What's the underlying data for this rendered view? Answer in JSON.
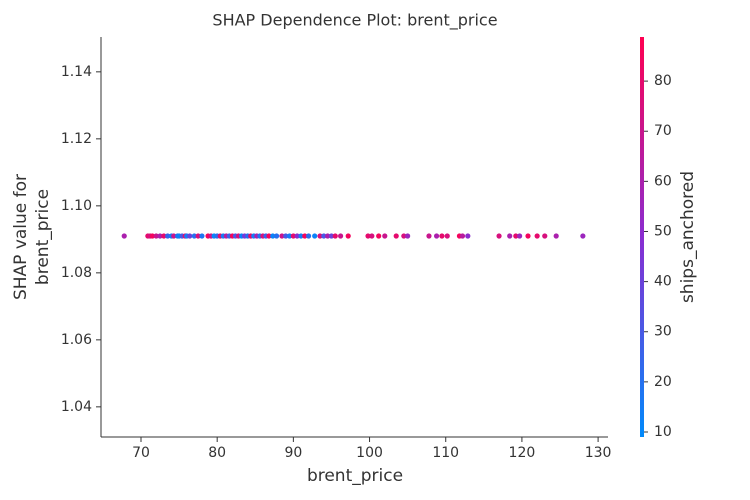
{
  "chart_data": {
    "type": "scatter",
    "title": "SHAP Dependence Plot: brent_price",
    "x_label": "brent_price",
    "y_label": [
      "SHAP value for",
      "brent_price"
    ],
    "color_label": "ships_anchored",
    "xlim": [
      64.75,
      131.3
    ],
    "ylim": [
      1.031,
      1.1504
    ],
    "clim": [
      9,
      88.8
    ],
    "xticks": [
      70,
      80,
      90,
      100,
      110,
      120,
      130
    ],
    "yticks": [
      1.04,
      1.06,
      1.08,
      {
        "value": 1.1,
        "label": "1.10"
      },
      1.12,
      1.14
    ],
    "cticks": [
      10,
      20,
      30,
      40,
      50,
      60,
      70,
      80
    ],
    "colormap": [
      "#008afb",
      "#8a2dd1",
      "#ff0051"
    ],
    "x": [
      67.8,
      70.9,
      71.2,
      71.5,
      72,
      72.5,
      73,
      73.5,
      74,
      74.3,
      74.8,
      75,
      75.4,
      75.8,
      76,
      76.4,
      77,
      77.5,
      78,
      78.8,
      79.2,
      79.6,
      80,
      80.4,
      80.8,
      81.2,
      81.6,
      82,
      82.4,
      82.8,
      83.2,
      83.6,
      84,
      84.4,
      84.8,
      85.2,
      85.6,
      86,
      86.4,
      86.8,
      87.3,
      87.8,
      88.5,
      89,
      89.5,
      90,
      90.5,
      91,
      91.5,
      92,
      92.8,
      93.5,
      94,
      94.5,
      95,
      95.5,
      96.2,
      97.2,
      99.8,
      100.3,
      101.2,
      102,
      103.5,
      104.5,
      105,
      107.8,
      108.8,
      109.5,
      110.2,
      111.8,
      112.2,
      112.9,
      117,
      118.4,
      119.2,
      119.7,
      120.8,
      122,
      123,
      124.5,
      128
    ],
    "values": [
      1.091,
      1.091,
      1.091,
      1.091,
      1.091,
      1.091,
      1.091,
      1.091,
      1.091,
      1.091,
      1.091,
      1.091,
      1.091,
      1.091,
      1.091,
      1.091,
      1.091,
      1.091,
      1.091,
      1.091,
      1.091,
      1.091,
      1.091,
      1.091,
      1.091,
      1.091,
      1.091,
      1.091,
      1.091,
      1.091,
      1.091,
      1.091,
      1.091,
      1.091,
      1.091,
      1.091,
      1.091,
      1.091,
      1.091,
      1.091,
      1.091,
      1.091,
      1.091,
      1.091,
      1.091,
      1.091,
      1.091,
      1.091,
      1.091,
      1.091,
      1.091,
      1.091,
      1.091,
      1.091,
      1.091,
      1.091,
      1.091,
      1.091,
      1.091,
      1.091,
      1.091,
      1.091,
      1.091,
      1.091,
      1.091,
      1.091,
      1.091,
      1.091,
      1.091,
      1.091,
      1.091,
      1.091,
      1.091,
      1.091,
      1.091,
      1.091,
      1.091,
      1.091,
      1.091,
      1.091,
      1.091
    ],
    "color_values": [
      60,
      80,
      75,
      85,
      70,
      60,
      80,
      25,
      15,
      70,
      20,
      12,
      30,
      80,
      15,
      40,
      20,
      75,
      18,
      85,
      70,
      10,
      22,
      80,
      15,
      65,
      25,
      85,
      30,
      75,
      12,
      45,
      20,
      80,
      15,
      60,
      18,
      75,
      25,
      85,
      12,
      20,
      70,
      30,
      15,
      80,
      50,
      14,
      85,
      20,
      12,
      75,
      30,
      60,
      40,
      80,
      70,
      85,
      80,
      75,
      85,
      70,
      80,
      75,
      55,
      70,
      60,
      80,
      75,
      85,
      65,
      50,
      75,
      60,
      80,
      55,
      85,
      80,
      75,
      60,
      55
    ]
  }
}
